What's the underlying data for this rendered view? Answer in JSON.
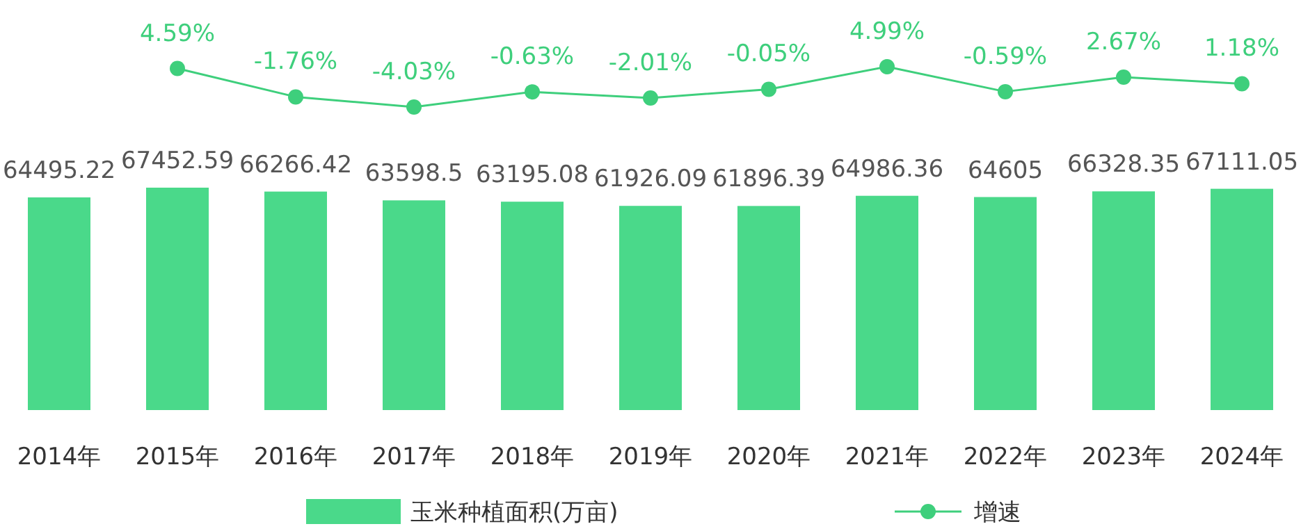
{
  "chart_data": [
    {
      "type": "bar",
      "categories": [
        "2014年",
        "2015年",
        "2016年",
        "2017年",
        "2018年",
        "2019年",
        "2020年",
        "2021年",
        "2022年",
        "2023年",
        "2024年"
      ],
      "series": [
        {
          "name": "玉米种植面积(万亩)",
          "color": "#4ad98a",
          "values": [
            64495.22,
            67452.59,
            66266.42,
            63598.5,
            63195.08,
            61926.09,
            61896.39,
            64986.36,
            64605,
            66328.35,
            67111.05
          ]
        }
      ],
      "data_labels": true,
      "legend": "bottom"
    },
    {
      "type": "line",
      "categories": [
        null,
        null,
        null,
        null,
        null,
        null,
        null,
        null,
        null,
        null,
        null
      ],
      "series": [
        {
          "name": "增速",
          "color": "#3ecf7c",
          "values": [
            null,
            4.59,
            -1.76,
            -4.03,
            -0.63,
            -2.01,
            -0.05,
            4.99,
            -0.59,
            2.67,
            1.18
          ],
          "value_labels": [
            null,
            "4.59%",
            "-1.76%",
            "-4.03%",
            "-0.63%",
            "-2.01%",
            "-0.05%",
            "4.99%",
            "-0.59%",
            "2.67%",
            "1.18%"
          ]
        }
      ],
      "legend": "bottom",
      "marker": "circle"
    }
  ]
}
